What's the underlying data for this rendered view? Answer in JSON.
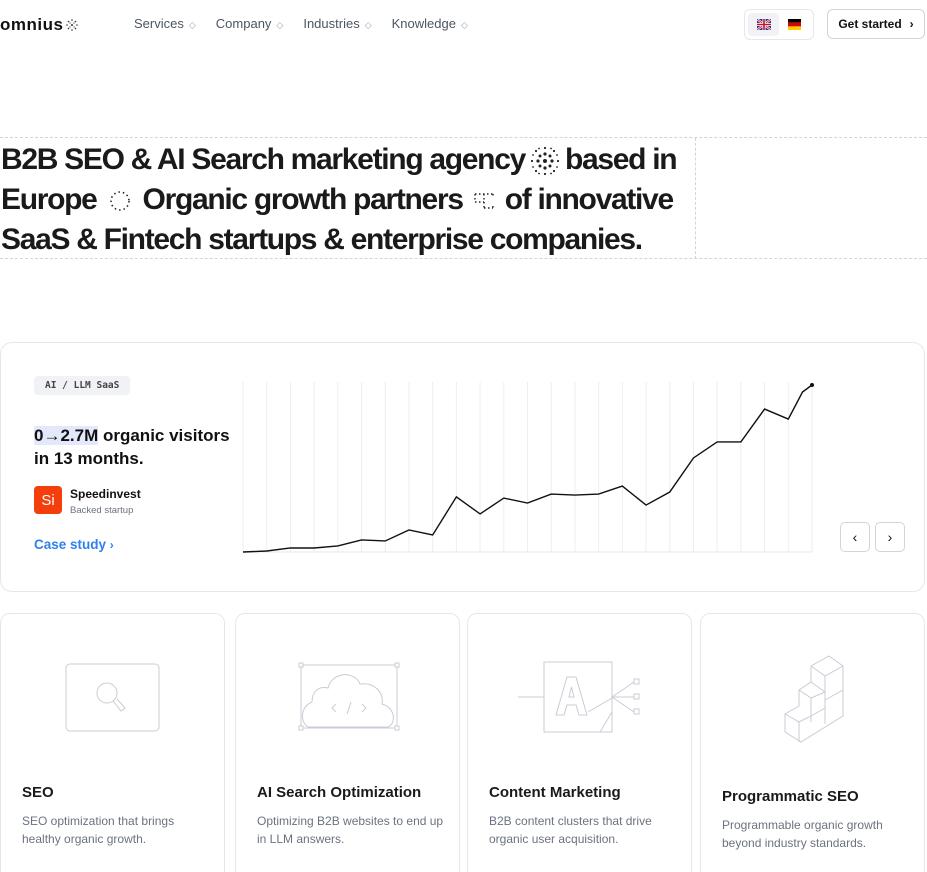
{
  "nav": {
    "logo": "omnius",
    "items": [
      {
        "label": "Services"
      },
      {
        "label": "Company"
      },
      {
        "label": "Industries"
      },
      {
        "label": "Knowledge"
      }
    ],
    "languages": [
      {
        "code": "en",
        "icon": "uk-flag-icon",
        "active": true
      },
      {
        "code": "de",
        "icon": "germany-flag-icon",
        "active": false
      }
    ],
    "cta": "Get started"
  },
  "hero": {
    "line1a": "B2B SEO & AI Search marketing agency",
    "line1b": "based in",
    "line2a": "Europe",
    "line2b": "Organic growth partners",
    "line2c": "of innovative",
    "line3": "SaaS & Fintech startups & enterprise companies."
  },
  "case_study": {
    "tag": "AI / LLM SaaS",
    "stat_highlight": "0→2.7M",
    "stat_rest": " organic visitors in 13 months.",
    "company": "Speedinvest",
    "company_initials": "Si",
    "company_sub": "Backed startup",
    "link": "Case study",
    "accent": "#2f80ed",
    "logo_color": "#f43f0d"
  },
  "chart_data": {
    "type": "line",
    "x": [
      0,
      1,
      2,
      3,
      4,
      5,
      6,
      7,
      8,
      9,
      10,
      11,
      12,
      13,
      14,
      15,
      16,
      17,
      18,
      19,
      20,
      21,
      22,
      23,
      23.6,
      24
    ],
    "values": [
      0,
      0.6,
      2.4,
      2.4,
      3.6,
      7.2,
      6.6,
      13.2,
      10.2,
      33,
      22.8,
      32.3,
      29.3,
      34.7,
      34.1,
      34.7,
      39.5,
      28.1,
      35.9,
      56.3,
      65.9,
      65.9,
      85.6,
      79.6,
      95.8,
      100
    ],
    "xlim": [
      0,
      24
    ],
    "ylim": [
      0,
      100
    ],
    "grid": "vertical",
    "axes_labels": false
  },
  "services": [
    {
      "title": "SEO",
      "desc": "SEO optimization that brings healthy organic growth.",
      "icon": "magnifier-icon"
    },
    {
      "title": "AI Search Optimization",
      "desc": "Optimizing B2B websites to end up in LLM answers.",
      "icon": "cloud-code-icon"
    },
    {
      "title": "Content Marketing",
      "desc": "B2B content clusters that drive organic user acquisition.",
      "icon": "letter-a-icon"
    },
    {
      "title": "Programmatic SEO",
      "desc": "Programmable organic growth beyond industry standards.",
      "icon": "cubes-icon"
    }
  ]
}
